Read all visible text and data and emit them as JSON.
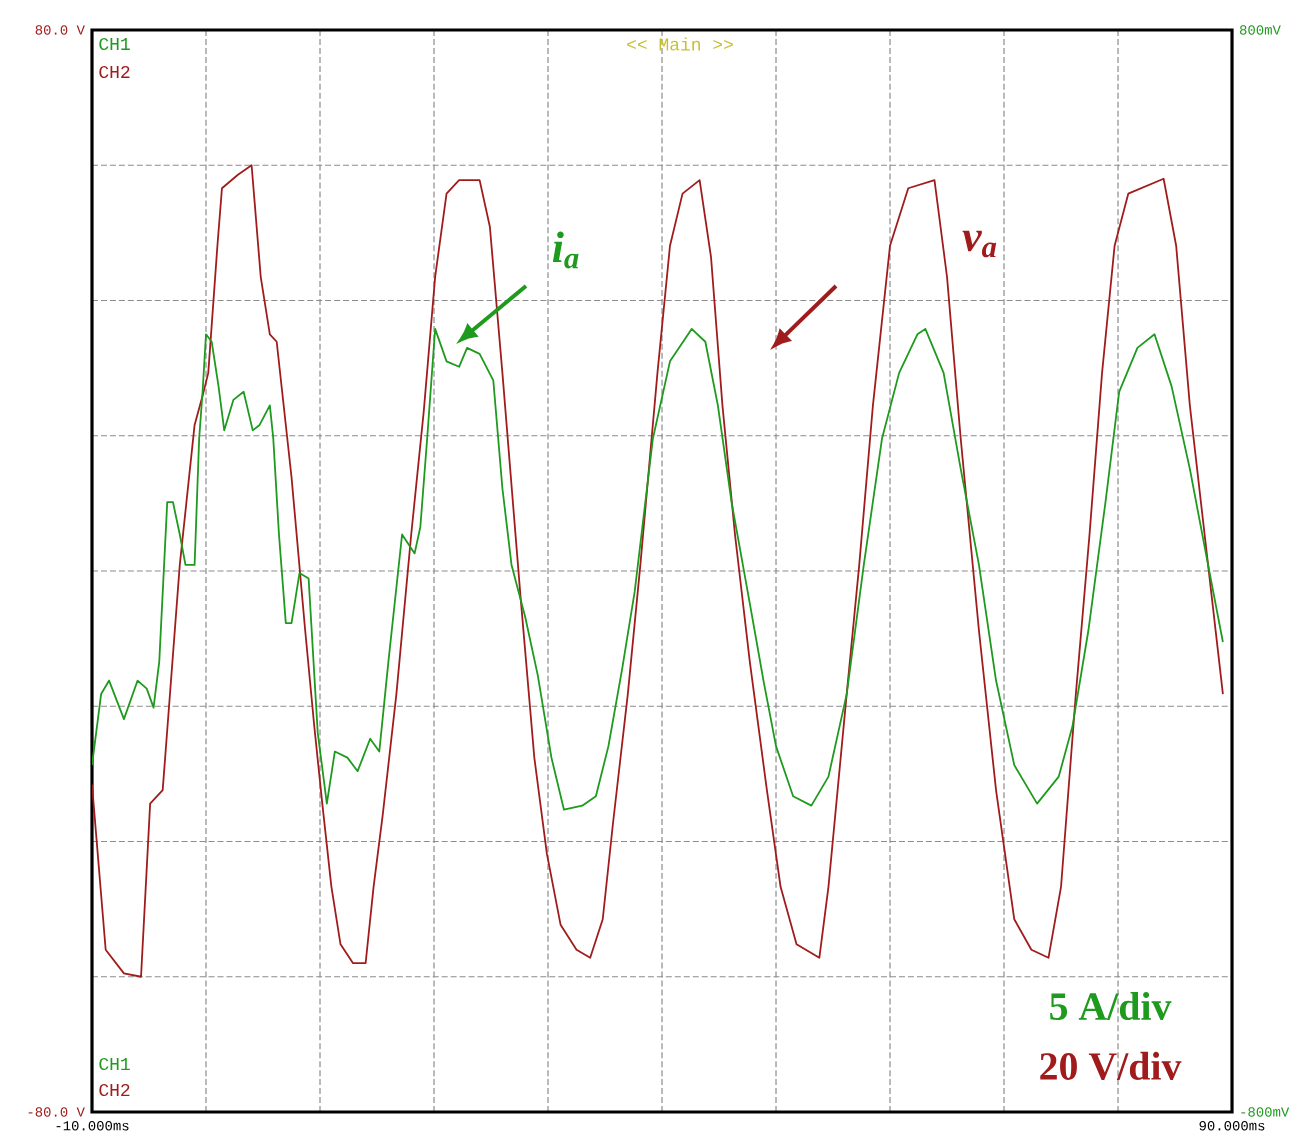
{
  "chart_data": {
    "type": "line",
    "annotations": [
      "<< Main >>",
      "i$_{a}$",
      "v$_{a}$",
      "5 A/div",
      "20 V/div"
    ],
    "xlim": [
      -10,
      90
    ],
    "xticks": [
      {
        "value": -10,
        "label": "-10.000ms"
      },
      {
        "value": 0,
        "label": null
      },
      {
        "value": 10,
        "label": null
      },
      {
        "value": 20,
        "label": null
      },
      {
        "value": 30,
        "label": null
      },
      {
        "value": 40,
        "label": null
      },
      {
        "value": 50,
        "label": null
      },
      {
        "value": 60,
        "label": null
      },
      {
        "value": 70,
        "label": null
      },
      {
        "value": 80,
        "label": null
      },
      {
        "value": 90,
        "label": "90.000ms"
      }
    ],
    "ylim": [
      -80,
      80
    ],
    "yticks": [
      {
        "value": -80,
        "label": "-80.0 V"
      },
      {
        "value": -60,
        "label": null
      },
      {
        "value": -40,
        "label": null
      },
      {
        "value": -20,
        "label": null
      },
      {
        "value": 0,
        "label": null
      },
      {
        "value": 20,
        "label": null
      },
      {
        "value": 40,
        "label": null
      },
      {
        "value": 60,
        "label": null
      },
      {
        "value": 80,
        "label": "80.0 V"
      }
    ],
    "y2lim": [
      -800,
      800
    ],
    "y2ticks": [
      {
        "value": -800,
        "label": "-800mV"
      },
      {
        "value": 800,
        "label": "800mV"
      }
    ],
    "grid": true,
    "series": [
      {
        "name": "CH1",
        "color": "#1e9a1e",
        "axis": "y2",
        "x": [
          -10,
          -9.2,
          -8.5,
          -7.2,
          -6.0,
          -5.2,
          -4.6,
          -4.1,
          -3.4,
          -2.9,
          -2.3,
          -1.8,
          -1.0,
          -0.6,
          -0.3,
          0.0,
          0.5,
          1.1,
          1.6,
          2.4,
          3.3,
          4.1,
          4.7,
          5.6,
          5.9,
          6.4,
          7.0,
          7.5,
          8.2,
          9.0,
          9.8,
          10.6,
          11.3,
          12.4,
          13.3,
          14.4,
          15.2,
          16.0,
          17.2,
          18.3,
          18.8,
          19.4,
          20.1,
          21.1,
          22.2,
          22.9,
          24.0,
          25.2,
          26.0,
          26.8,
          28.0,
          29.1,
          30.3,
          31.4,
          33.0,
          34.2,
          35.3,
          36.5,
          37.6,
          39.2,
          40.7,
          42.6,
          43.8,
          44.9,
          46.1,
          47.7,
          48.9,
          50.0,
          51.5,
          53.1,
          54.6,
          56.2,
          57.7,
          59.3,
          60.8,
          62.4,
          63.1,
          64.7,
          66.2,
          67.8,
          69.3,
          70.9,
          72.9,
          74.8,
          76.0,
          77.4,
          78.9,
          80.1,
          81.7,
          83.2,
          84.7,
          86.3,
          87.9,
          89.2
        ],
        "values": [
          -287,
          -182,
          -162,
          -219,
          -162,
          -174,
          -202,
          -134,
          102,
          102,
          54,
          9,
          9,
          196,
          265,
          350,
          339,
          273,
          208,
          253,
          265,
          208,
          216,
          245,
          196,
          54,
          -77,
          -77,
          -3,
          -11,
          -239,
          -344,
          -267,
          -276,
          -296,
          -248,
          -267,
          -134,
          54,
          26,
          65,
          196,
          358,
          310,
          302,
          330,
          321,
          282,
          122,
          9,
          -68,
          -154,
          -276,
          -353,
          -347,
          -333,
          -259,
          -145,
          -31,
          196,
          310,
          358,
          339,
          245,
          102,
          -48,
          -162,
          -259,
          -333,
          -347,
          -304,
          -182,
          9,
          196,
          293,
          350,
          358,
          293,
          151,
          9,
          -162,
          -287,
          -344,
          -304,
          -230,
          -88,
          102,
          265,
          330,
          350,
          273,
          151,
          9,
          -105
        ]
      },
      {
        "name": "CH2",
        "color": "#a01c1c",
        "x": [
          -10,
          -8.8,
          -7.2,
          -5.7,
          -4.9,
          -3.8,
          -2.3,
          -1.0,
          -0.3,
          0.2,
          1.0,
          1.4,
          2.8,
          4.0,
          4.8,
          5.6,
          6.2,
          7.5,
          8.7,
          9.5,
          10.2,
          11.0,
          11.8,
          12.9,
          14.0,
          14.7,
          15.5,
          16.7,
          18.0,
          19.1,
          20.1,
          21.1,
          22.2,
          24.0,
          24.9,
          26.0,
          27.6,
          28.8,
          29.9,
          31.1,
          32.5,
          33.7,
          34.8,
          35.7,
          37.0,
          38.1,
          39.6,
          40.7,
          41.8,
          43.3,
          44.3,
          45.3,
          46.4,
          47.7,
          49.2,
          50.4,
          51.8,
          53.8,
          54.6,
          56.2,
          57.3,
          58.5,
          60.0,
          61.6,
          63.9,
          65.0,
          66.2,
          67.8,
          69.3,
          70.9,
          72.4,
          73.9,
          75.0,
          76.3,
          77.5,
          78.6,
          79.7,
          80.9,
          84.0,
          85.1,
          86.3,
          87.9,
          89.2
        ],
        "values": [
          -31.6,
          -56.0,
          -59.5,
          -60.0,
          -34.4,
          -32.4,
          0.9,
          21.6,
          25.9,
          29.3,
          48.1,
          56.6,
          58.6,
          60.0,
          43.5,
          35.0,
          33.9,
          13.9,
          -8.8,
          -23.0,
          -34.4,
          -46.7,
          -55.2,
          -58.0,
          -58.0,
          -46.7,
          -36.1,
          -18.2,
          5.4,
          23.6,
          43.5,
          55.8,
          57.8,
          57.8,
          50.9,
          29.3,
          -4.0,
          -27.6,
          -41.8,
          -52.3,
          -56.0,
          -57.2,
          -51.5,
          -37.3,
          -18.2,
          0.9,
          29.3,
          48.1,
          55.8,
          57.8,
          46.4,
          24.5,
          5.4,
          -13.4,
          -32.4,
          -46.7,
          -55.2,
          -57.2,
          -46.7,
          -18.2,
          0.9,
          24.5,
          48.1,
          56.6,
          57.8,
          43.5,
          19.6,
          -8.8,
          -32.4,
          -51.5,
          -56.0,
          -57.2,
          -46.7,
          -18.2,
          5.4,
          29.3,
          48.1,
          55.8,
          58.0,
          48.1,
          24.5,
          0.9,
          -18.2
        ]
      }
    ]
  }
}
